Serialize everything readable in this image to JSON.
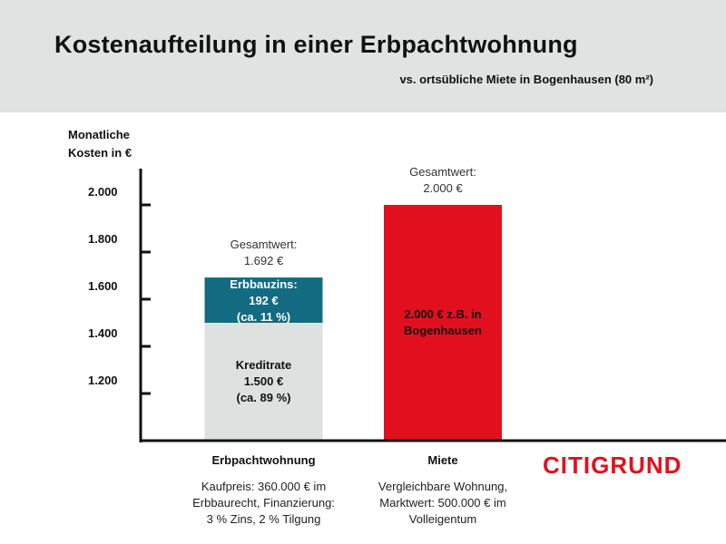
{
  "header": {
    "title": "Kostenaufteilung in einer Erbpachtwohnung",
    "subtitle": "vs. ortsübliche Miete in Bogenhausen (80 m²)"
  },
  "logo": {
    "text": "CITIGRUND",
    "color": "#e2101e"
  },
  "chart_data": {
    "type": "bar",
    "stacked": true,
    "ylabel_lines": [
      "Monatliche",
      "Kosten in €"
    ],
    "ylim": [
      1000,
      2000
    ],
    "yticks": [
      1200,
      1400,
      1600,
      1800,
      2000
    ],
    "ytick_labels": [
      "1.200",
      "1.400",
      "1.600",
      "1.800",
      "2.000"
    ],
    "grid": false,
    "categories": [
      "Erbpachtwohnung",
      "Miete"
    ],
    "bars": [
      {
        "category": "Erbpachtwohnung",
        "total_label_lines": [
          "Gesamtwert:",
          "1.692 €"
        ],
        "description_lines": [
          "Kaufpreis: 360.000 € im",
          "Erbbaurecht, Finanzierung:",
          "3 % Zins, 2 % Tilgung"
        ],
        "segments": [
          {
            "value": 1500,
            "color": "#dfe1e0",
            "text_color": "#111111",
            "label_lines": [
              "Kreditrate",
              "1.500 €",
              "(ca. 89 %)"
            ]
          },
          {
            "value": 192,
            "color": "#136b82",
            "text_color": "#ffffff",
            "label_lines": [
              "Erbbauzins:",
              "192 €",
              "(ca. 11 %)"
            ]
          }
        ]
      },
      {
        "category": "Miete",
        "total_label_lines": [
          "Gesamtwert:",
          "2.000 €"
        ],
        "description_lines": [
          "Vergleichbare Wohnung,",
          "Marktwert: 500.000 € im",
          "Volleigentum"
        ],
        "segments": [
          {
            "value": 2000,
            "color": "#e2101e",
            "text_color": "#111111",
            "label_lines": [
              "2.000 € z.B. in",
              "Bogenhausen"
            ]
          }
        ]
      }
    ]
  }
}
